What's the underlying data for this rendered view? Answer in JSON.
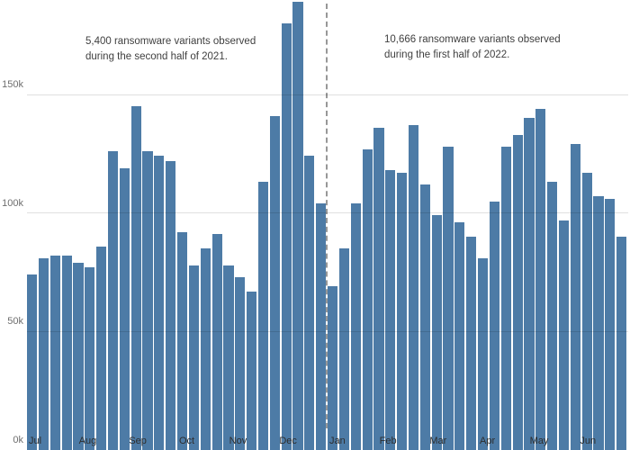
{
  "chart_data": {
    "type": "bar",
    "y_unit": "k (thousands of ransomware variants)",
    "y_ticks": [
      0,
      50,
      100,
      150
    ],
    "y_tick_labels": [
      "0k",
      "50k",
      "100k",
      "150k"
    ],
    "ylim": [
      0,
      190
    ],
    "grid": "horizontal",
    "x_month_labels": [
      "Jul",
      "Aug",
      "Sep",
      "Oct",
      "Nov",
      "Dec",
      "Jan",
      "Feb",
      "Mar",
      "Apr",
      "May",
      "Jun"
    ],
    "values_k": [
      74,
      81,
      82,
      82,
      79,
      77,
      86,
      126,
      119,
      145,
      126,
      124,
      122,
      92,
      78,
      85,
      91,
      78,
      73,
      67,
      113,
      141,
      180,
      189,
      124,
      104,
      69,
      85,
      104,
      127,
      136,
      118,
      117,
      137,
      112,
      99,
      128,
      96,
      90,
      81,
      105,
      128,
      133,
      140,
      144,
      113,
      97,
      129,
      117,
      107,
      106,
      90
    ],
    "divider_after_index": 25,
    "annotations": [
      {
        "text": "5,400 ransomware variants observed\nduring the second half of 2021."
      },
      {
        "text": "10,666 ransomware variants observed\nduring the first half of 2022."
      }
    ],
    "bar_color": "#4d7ba6",
    "gridline_color": "rgba(0,0,0,0.12)",
    "divider_color": "#979797"
  }
}
